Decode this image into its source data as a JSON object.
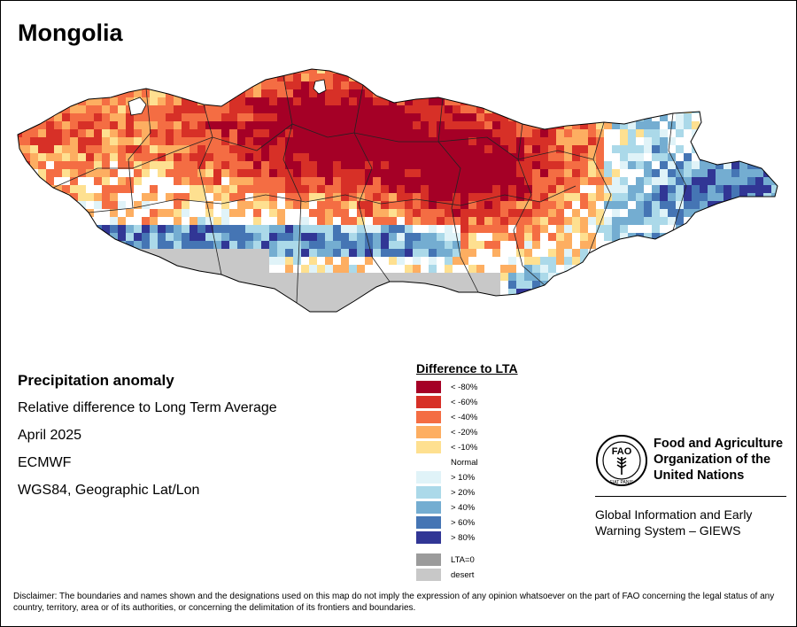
{
  "title": "Mongolia",
  "info": {
    "heading": "Precipitation anomaly",
    "line1": "Relative difference to Long Term Average",
    "line2": "April 2025",
    "line3": "ECMWF",
    "line4": "WGS84, Geographic Lat/Lon"
  },
  "legend": {
    "title": "Difference to LTA",
    "items": [
      {
        "label": "< -80%",
        "color": "#a50026"
      },
      {
        "label": "< -60%",
        "color": "#d73027"
      },
      {
        "label": "< -40%",
        "color": "#f46d43"
      },
      {
        "label": "< -20%",
        "color": "#fdae61"
      },
      {
        "label": "< -10%",
        "color": "#fee090"
      },
      {
        "label": "Normal",
        "color": "#ffffff"
      },
      {
        "label": "> 10%",
        "color": "#e0f3f8"
      },
      {
        "label": "> 20%",
        "color": "#abd9e9"
      },
      {
        "label": "> 40%",
        "color": "#74add1"
      },
      {
        "label": "> 60%",
        "color": "#4575b4"
      },
      {
        "label": "> 80%",
        "color": "#313695"
      }
    ],
    "extra": [
      {
        "label": "LTA=0",
        "color": "#9b9b9b"
      },
      {
        "label": "desert",
        "color": "#c8c8c8"
      }
    ]
  },
  "fao": {
    "org_line1": "Food and Agriculture",
    "org_line2": "Organization of the",
    "org_line3": "United Nations",
    "giews_line1": "Global Information and Early",
    "giews_line2": "Warning System – GIEWS",
    "emblem_letters": "FAO",
    "emblem_motto": "FIAT PANIS"
  },
  "disclaimer": "Disclaimer: The boundaries and names shown and the designations used on this map do not imply the expression of any opinion whatsoever on the part of FAO concerning the legal status of any country, territory, area or of its authorities, or concerning the delimitation of its frontiers and boundaries."
}
